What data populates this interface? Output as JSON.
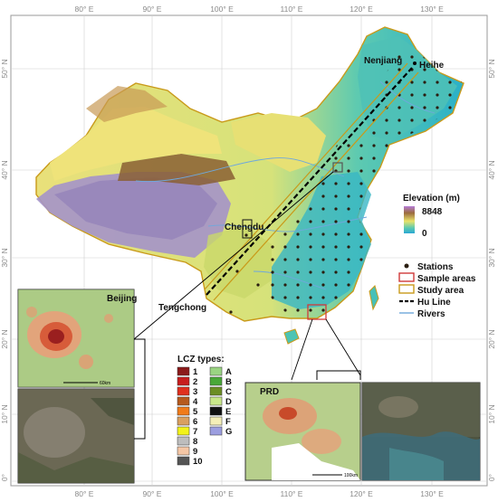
{
  "map": {
    "lon_ticks": [
      "80° E",
      "90° E",
      "100° E",
      "110° E",
      "120° E",
      "130° E"
    ],
    "lat_ticks": [
      "50° N",
      "40° N",
      "30° N",
      "20° N",
      "10° N",
      "0°"
    ],
    "place_labels": {
      "nenjiang": "Nenjiang",
      "heihe": "Heihe",
      "chengdu": "Chengdu",
      "tengchong": "Tengchong"
    },
    "elevation_legend": {
      "title": "Elevation (m)",
      "max": "8848",
      "min": "0"
    },
    "legend": {
      "stations": "Stations",
      "sample_areas": "Sample areas",
      "study_area": "Study area",
      "hu_line": "Hu Line",
      "rivers": "Rivers"
    },
    "colors": {
      "sample_box": "#d03a3a",
      "study_border": "#c99a1a",
      "river": "#6fa8dc",
      "hu_line": "#000000",
      "station": "#2a1e10"
    }
  },
  "insets": {
    "beijing": {
      "label": "Beijing",
      "scale": "60km"
    },
    "prd": {
      "label": "PRD",
      "scale": "100km"
    }
  },
  "lcz": {
    "title": "LCZ types:",
    "left": [
      {
        "label": "1",
        "color": "#8b1a1a"
      },
      {
        "label": "2",
        "color": "#c81e1e"
      },
      {
        "label": "3",
        "color": "#e0301e"
      },
      {
        "label": "4",
        "color": "#b65a1e"
      },
      {
        "label": "5",
        "color": "#f07b1a"
      },
      {
        "label": "6",
        "color": "#d9a060"
      },
      {
        "label": "7",
        "color": "#f2f21a"
      },
      {
        "label": "8",
        "color": "#bdbdbd"
      },
      {
        "label": "9",
        "color": "#f4c6a5"
      },
      {
        "label": "10",
        "color": "#555555"
      }
    ],
    "right": [
      {
        "label": "A",
        "color": "#9ad483"
      },
      {
        "label": "B",
        "color": "#49a838"
      },
      {
        "label": "C",
        "color": "#6c8e24"
      },
      {
        "label": "D",
        "color": "#c9e88a"
      },
      {
        "label": "E",
        "color": "#111111"
      },
      {
        "label": "F",
        "color": "#f5efb8"
      },
      {
        "label": "G",
        "color": "#9c9ee0"
      }
    ]
  }
}
